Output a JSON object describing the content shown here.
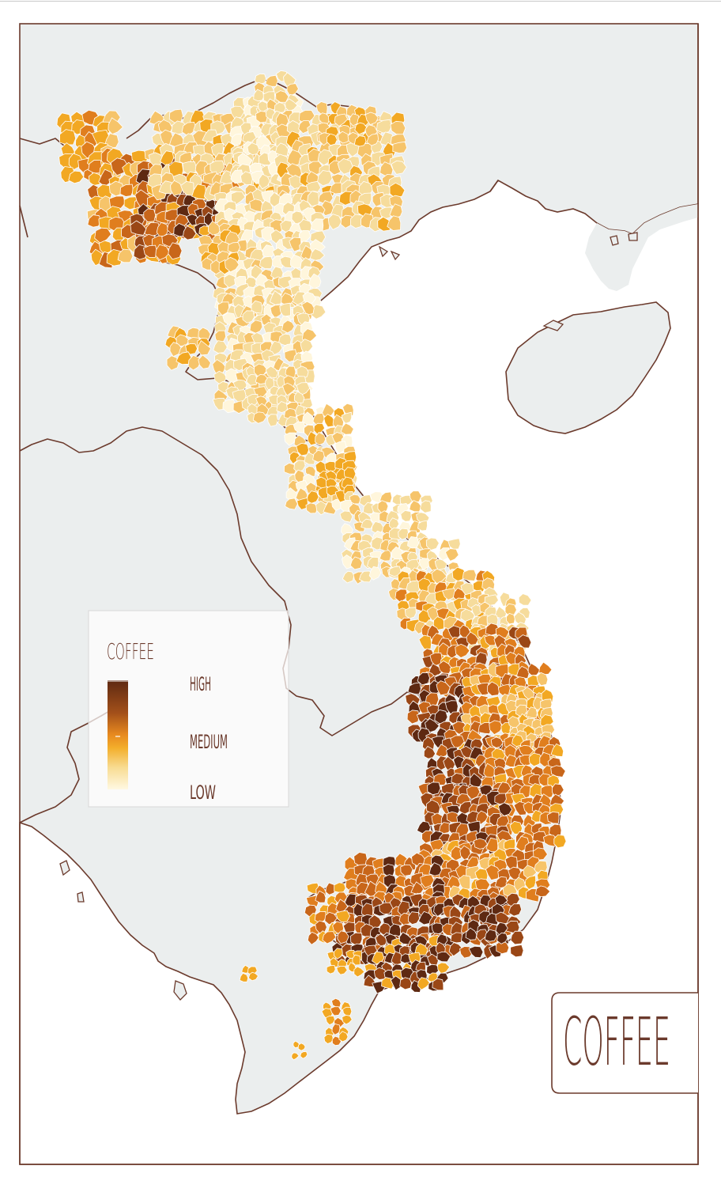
{
  "map": {
    "colors": {
      "land": "#ebeeee",
      "sea": "#ffffff",
      "border": "#6b3a2c",
      "low": "#fff6dc",
      "light": "#f6dc9c",
      "mid_light": "#f6c46a",
      "medium": "#f2a823",
      "mid_high": "#e07e1e",
      "high_a": "#c8661a",
      "high_b": "#9a4716",
      "high": "#5e2912"
    }
  },
  "legend": {
    "title": "COFFEE",
    "high_label": "HIGH",
    "medium_label": "MEDIUM",
    "low_label": "LOW"
  },
  "title_box": {
    "title": "COFFEE"
  }
}
